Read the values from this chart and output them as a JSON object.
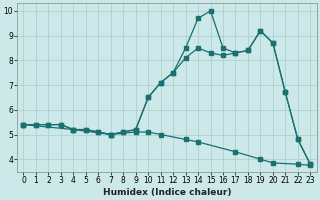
{
  "xlabel": "Humidex (Indice chaleur)",
  "bg_color": "#cce8e8",
  "grid_color": "#aacccc",
  "line_color": "#1a7070",
  "xlim": [
    -0.5,
    23.5
  ],
  "ylim": [
    3.5,
    10.3
  ],
  "xticks": [
    0,
    1,
    2,
    3,
    4,
    5,
    6,
    7,
    8,
    9,
    10,
    11,
    12,
    13,
    14,
    15,
    16,
    17,
    18,
    19,
    20,
    21,
    22,
    23
  ],
  "yticks": [
    4,
    5,
    6,
    7,
    8,
    9,
    10
  ],
  "line1_x": [
    0,
    1,
    2,
    3,
    4,
    5,
    6,
    7,
    8,
    9,
    10,
    11,
    12,
    13,
    14,
    15,
    16,
    17,
    18,
    19,
    20,
    21,
    22,
    23
  ],
  "line1_y": [
    5.4,
    5.4,
    5.4,
    5.4,
    5.2,
    5.2,
    5.1,
    5.0,
    5.1,
    5.2,
    6.5,
    7.1,
    7.5,
    8.1,
    8.5,
    8.3,
    8.2,
    8.3,
    8.4,
    9.2,
    8.7,
    6.7,
    4.8,
    3.8
  ],
  "line2_x": [
    0,
    1,
    2,
    3,
    4,
    5,
    6,
    7,
    8,
    9,
    10,
    11,
    12,
    13,
    14,
    15,
    16,
    17,
    18,
    19,
    20,
    21,
    22,
    23
  ],
  "line2_y": [
    5.4,
    5.4,
    5.4,
    5.4,
    5.2,
    5.2,
    5.1,
    5.0,
    5.1,
    5.2,
    6.5,
    7.1,
    7.5,
    8.5,
    9.7,
    10.0,
    8.5,
    8.3,
    8.4,
    9.2,
    8.7,
    6.7,
    4.8,
    3.8
  ],
  "line3_x": [
    0,
    4,
    7,
    9,
    10,
    11,
    13,
    14,
    17,
    19,
    20,
    22,
    23
  ],
  "line3_y": [
    5.4,
    5.2,
    5.0,
    5.1,
    5.1,
    5.0,
    4.8,
    4.7,
    4.3,
    4.0,
    3.85,
    3.8,
    3.75
  ],
  "marker_size": 2.5,
  "linewidth": 0.9,
  "xlabel_fontsize": 6.5,
  "tick_fontsize": 5.5
}
